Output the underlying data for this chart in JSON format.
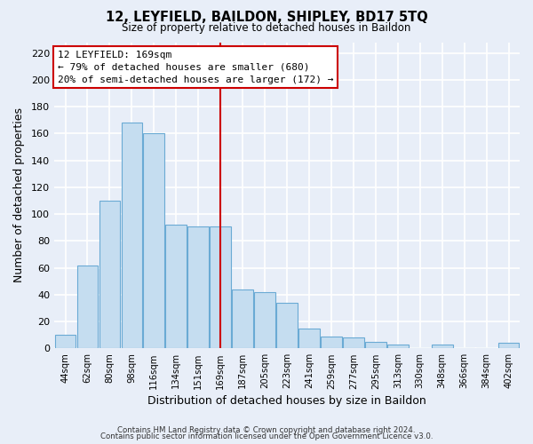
{
  "title": "12, LEYFIELD, BAILDON, SHIPLEY, BD17 5TQ",
  "subtitle": "Size of property relative to detached houses in Baildon",
  "xlabel": "Distribution of detached houses by size in Baildon",
  "ylabel": "Number of detached properties",
  "categories": [
    "44sqm",
    "62sqm",
    "80sqm",
    "98sqm",
    "116sqm",
    "134sqm",
    "151sqm",
    "169sqm",
    "187sqm",
    "205sqm",
    "223sqm",
    "241sqm",
    "259sqm",
    "277sqm",
    "295sqm",
    "313sqm",
    "330sqm",
    "348sqm",
    "366sqm",
    "384sqm",
    "402sqm"
  ],
  "values": [
    10,
    62,
    110,
    168,
    160,
    92,
    91,
    91,
    44,
    42,
    34,
    15,
    9,
    8,
    5,
    3,
    0,
    3,
    0,
    0,
    4
  ],
  "bar_color": "#c5ddf0",
  "bar_edge_color": "#6aaad4",
  "vline_x_index": 7,
  "vline_color": "#cc0000",
  "annotation_title": "12 LEYFIELD: 169sqm",
  "annotation_line1": "← 79% of detached houses are smaller (680)",
  "annotation_line2": "20% of semi-detached houses are larger (172) →",
  "annotation_box_color": "#ffffff",
  "annotation_box_edge": "#cc0000",
  "ylim": [
    0,
    228
  ],
  "yticks": [
    0,
    20,
    40,
    60,
    80,
    100,
    120,
    140,
    160,
    180,
    200,
    220
  ],
  "footer1": "Contains HM Land Registry data © Crown copyright and database right 2024.",
  "footer2": "Contains public sector information licensed under the Open Government Licence v3.0.",
  "bg_color": "#e8eef8",
  "grid_color": "#ffffff",
  "title_fontsize": 10.5,
  "subtitle_fontsize": 8.5,
  "ylabel_text": "Number of detached properties"
}
